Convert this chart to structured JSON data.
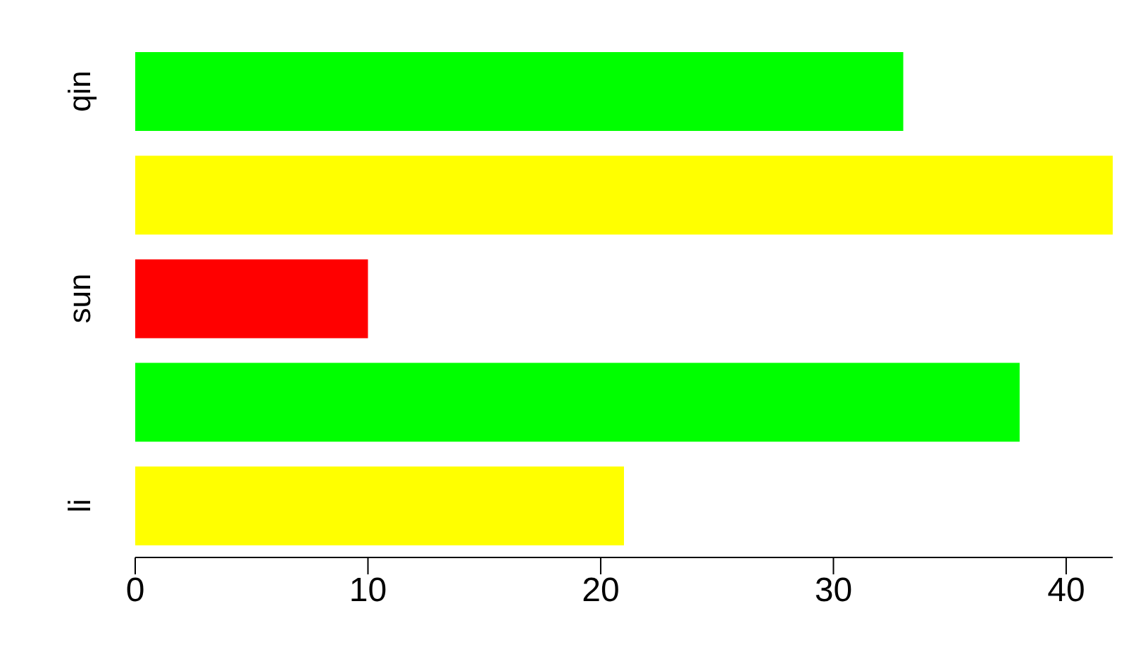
{
  "chart_data": {
    "type": "bar",
    "orientation": "horizontal",
    "categories": [
      "qin",
      null,
      "sun",
      null,
      "li"
    ],
    "values": [
      33,
      42,
      10,
      38,
      21
    ],
    "colors": [
      "#00ff00",
      "#ffff00",
      "#ff0000",
      "#00ff00",
      "#ffff00"
    ],
    "xlim": [
      0,
      42
    ],
    "xticks": [
      0,
      10,
      20,
      30,
      40
    ],
    "grid": false,
    "legend": false
  }
}
